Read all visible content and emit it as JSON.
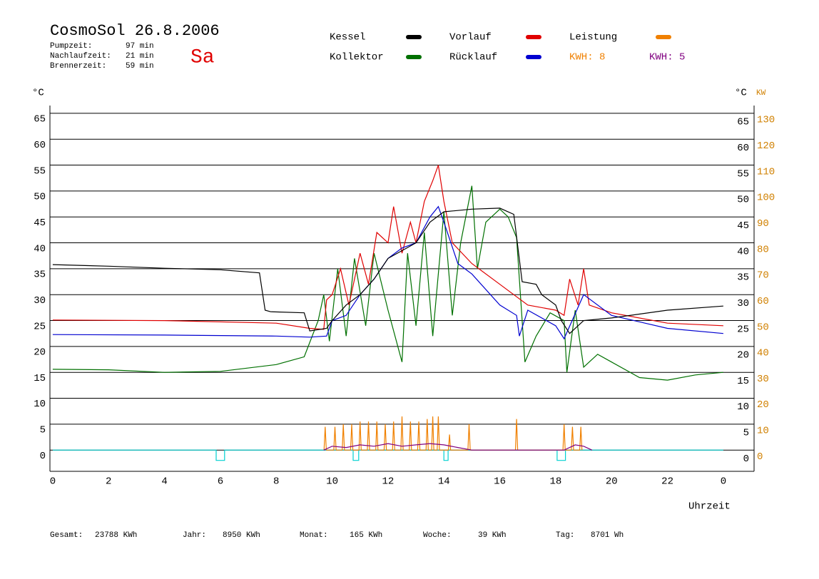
{
  "chart_data": {
    "type": "line",
    "title": "CosmoSol 26.8.2006",
    "subtitle": "Sa",
    "stats": [
      {
        "label": "Pumpzeit:",
        "value": "97 min"
      },
      {
        "label": "Nachlaufzeit:",
        "value": "21 min"
      },
      {
        "label": "Brennerzeit:",
        "value": "59 min"
      }
    ],
    "kwh_labels": [
      {
        "text": "KWH: 8",
        "color": "#f08000"
      },
      {
        "text": "KWH: 5",
        "color": "#800080"
      }
    ],
    "y_label": "°C",
    "y2_label": "°C",
    "y2_unit": "KW",
    "x_label": "Uhrzeit",
    "xlim": [
      -0.1,
      25.1
    ],
    "xticks": [
      0,
      2,
      4,
      6,
      8,
      10,
      12,
      14,
      16,
      18,
      20,
      22,
      {
        "value": 24,
        "label": "0"
      }
    ],
    "ylim": [
      -4.1,
      66.5
    ],
    "yticks": [
      0,
      5,
      10,
      15,
      20,
      25,
      30,
      35,
      40,
      45,
      50,
      55,
      60,
      65
    ],
    "y2lim": [
      -8.2,
      133
    ],
    "y2ticks": [
      0,
      10,
      20,
      30,
      40,
      50,
      60,
      70,
      80,
      90,
      100,
      110,
      120,
      130
    ],
    "grid": true,
    "series": [
      {
        "name": "Kessel",
        "color": "#000000",
        "x": [
          0,
          2,
          4,
          6,
          7.4,
          7.6,
          7.8,
          9.0,
          9.2,
          9.8,
          10,
          10.5,
          11,
          11.5,
          12,
          12.5,
          13,
          13.5,
          14,
          15,
          16,
          16.5,
          16.8,
          17.3,
          17.5,
          18,
          18.2,
          18.5,
          19,
          20,
          22,
          24
        ],
        "values": [
          35.8,
          35.5,
          35.1,
          34.8,
          34.2,
          27,
          26.7,
          26.5,
          23,
          23.5,
          25,
          28,
          30,
          33,
          37,
          38.5,
          40,
          44,
          46,
          46.5,
          46.7,
          45.5,
          32.5,
          32,
          30,
          28,
          25,
          22.5,
          25,
          25.5,
          27,
          27.8
        ]
      },
      {
        "name": "Vorlauf",
        "color": "#e00000",
        "x": [
          0,
          4,
          8,
          9.2,
          9.7,
          9.8,
          10,
          10.3,
          10.6,
          11,
          11.3,
          11.6,
          12,
          12.2,
          12.5,
          12.8,
          13,
          13.3,
          13.6,
          13.8,
          14,
          14.3,
          15,
          16,
          17,
          18,
          18.3,
          18.5,
          18.8,
          19,
          19.2,
          20,
          22,
          24
        ],
        "values": [
          25.1,
          25,
          24.5,
          23.5,
          23.3,
          29,
          30,
          35,
          28,
          38,
          32,
          42,
          40,
          47,
          38,
          44,
          40,
          48,
          52,
          55,
          48,
          40,
          36,
          32,
          28,
          27,
          26,
          33,
          28,
          35,
          28,
          26.5,
          24.5,
          24
        ]
      },
      {
        "name": "Leistung",
        "color": "#f08000",
        "axis": "y2",
        "x": [
          9.71,
          9.75,
          9.79,
          10.06,
          10.1,
          10.14,
          10.36,
          10.4,
          10.44,
          10.66,
          10.7,
          10.74,
          10.96,
          11.0,
          11.04,
          11.26,
          11.3,
          11.34,
          11.56,
          11.6,
          11.64,
          11.86,
          11.9,
          11.94,
          12.16,
          12.2,
          12.24,
          12.46,
          12.5,
          12.54,
          12.76,
          12.8,
          12.84,
          13.06,
          13.1,
          13.14,
          13.36,
          13.4,
          13.44,
          13.56,
          13.6,
          13.64,
          13.76,
          13.8,
          13.84,
          14.16,
          14.2,
          14.24,
          14.86,
          14.9,
          14.94,
          16.56,
          16.6,
          16.64,
          18.26,
          18.3,
          18.34,
          18.56,
          18.6,
          18.64,
          18.86,
          18.9,
          18.94
        ],
        "values": [
          0,
          9,
          0,
          0,
          9,
          0,
          0,
          10,
          0,
          0,
          10,
          0,
          0,
          11,
          0,
          0,
          11,
          0,
          0,
          11,
          0,
          0,
          10,
          0,
          0,
          11,
          0,
          0,
          13,
          0,
          0,
          11,
          0,
          0,
          11,
          0,
          0,
          12,
          0,
          0,
          13,
          0,
          0,
          13,
          0,
          0,
          6,
          0,
          0,
          10,
          0,
          0,
          12,
          0,
          0,
          10,
          0,
          0,
          9,
          0,
          0,
          9,
          0
        ]
      },
      {
        "name": "Kollektor",
        "color": "#007000",
        "x": [
          0,
          2,
          4,
          6,
          8,
          9,
          9.5,
          9.7,
          9.9,
          10.2,
          10.5,
          10.8,
          11.2,
          11.5,
          12,
          12.5,
          12.7,
          13,
          13.3,
          13.6,
          14,
          14.3,
          14.6,
          15,
          15.2,
          15.5,
          16,
          16.3,
          16.6,
          16.9,
          17.3,
          17.8,
          18.3,
          18.4,
          18.7,
          19,
          19.5,
          20,
          21,
          22,
          23,
          24
        ],
        "values": [
          15.6,
          15.5,
          15,
          15.2,
          16.5,
          18,
          25,
          30,
          21,
          35,
          22,
          37,
          24,
          38,
          27,
          17,
          38,
          24,
          42,
          22,
          46,
          26,
          40,
          51,
          35,
          44,
          46.5,
          45,
          41,
          17,
          22,
          26.5,
          25,
          15,
          27,
          16,
          18.5,
          17,
          14,
          13.5,
          14.5,
          15
        ]
      },
      {
        "name": "Rücklauf",
        "color": "#0000d0",
        "x": [
          0,
          4,
          8,
          9.2,
          9.8,
          10,
          10.5,
          11,
          11.5,
          12,
          12.5,
          13,
          13.5,
          13.8,
          14,
          14.5,
          15,
          16,
          16.6,
          16.7,
          17,
          18,
          18.3,
          19,
          20,
          22,
          24
        ],
        "values": [
          22.3,
          22.2,
          22,
          21.8,
          22,
          25,
          26,
          30,
          33,
          37,
          39,
          40,
          45,
          47,
          44,
          36,
          34,
          28,
          26,
          22,
          27,
          24,
          21.5,
          30,
          26,
          23.5,
          22.5
        ]
      },
      {
        "color": "#800080",
        "axis": "y2",
        "x": [
          9.7,
          10,
          10.5,
          11,
          11.5,
          12,
          12.5,
          13,
          13.5,
          14,
          14.5,
          15,
          16.6,
          18.3,
          18.7,
          19,
          19.3
        ],
        "values": [
          0,
          1.5,
          1,
          2,
          1.5,
          2.5,
          1.5,
          2,
          2.5,
          2,
          1,
          0,
          0,
          0,
          2,
          1.5,
          0
        ]
      },
      {
        "color": "#00d0d0",
        "x": [
          0,
          5.85,
          5.85,
          6.15,
          6.15,
          10.75,
          10.75,
          10.95,
          10.95,
          14.0,
          14.0,
          14.15,
          14.15,
          18.05,
          18.05,
          18.35,
          18.35,
          24
        ],
        "values": [
          0,
          0,
          -2,
          -2,
          0,
          0,
          -2,
          -2,
          0,
          0,
          -2,
          -2,
          0,
          0,
          -2,
          -2,
          0,
          0
        ]
      }
    ],
    "footer": [
      {
        "label": "Gesamt:",
        "value": "23788 KWh"
      },
      {
        "label": "Jahr:",
        "value": "8950 KWh"
      },
      {
        "label": "Monat:",
        "value": "165 KWh"
      },
      {
        "label": "Woche:",
        "value": "39 KWh"
      },
      {
        "label": "Tag:",
        "value": "8701 Wh"
      }
    ]
  }
}
